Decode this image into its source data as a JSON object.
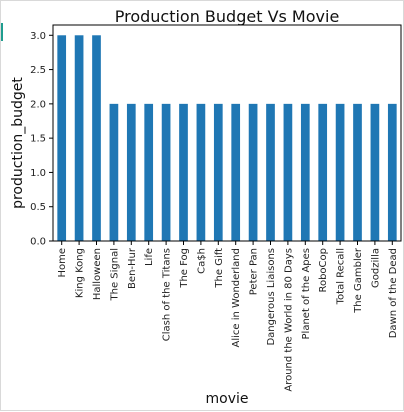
{
  "chart_data": {
    "type": "bar",
    "title": "Production Budget Vs Movie",
    "xlabel": "movie",
    "ylabel": "production_budget",
    "categories": [
      "Home",
      "King Kong",
      "Halloween",
      "The Signal",
      "Ben-Hur",
      "Life",
      "Clash of the Titans",
      "The Fog",
      "Ca$h",
      "The Gift",
      "Alice in Wonderland",
      "Peter Pan",
      "Dangerous Liaisons",
      "Around the World in 80 Days",
      "Planet of the Apes",
      "RoboCop",
      "Total Recall",
      "The Gambler",
      "Godzilla",
      "Dawn of the Dead"
    ],
    "values": [
      3.0,
      3.0,
      3.0,
      2.0,
      2.0,
      2.0,
      2.0,
      2.0,
      2.0,
      2.0,
      2.0,
      2.0,
      2.0,
      2.0,
      2.0,
      2.0,
      2.0,
      2.0,
      2.0,
      2.0
    ],
    "yticks": [
      "0.0",
      "0.5",
      "1.0",
      "1.5",
      "2.0",
      "2.5",
      "3.0"
    ],
    "ylim": [
      0,
      3.15
    ],
    "grid": false,
    "bar_color": "#1f77b4"
  }
}
